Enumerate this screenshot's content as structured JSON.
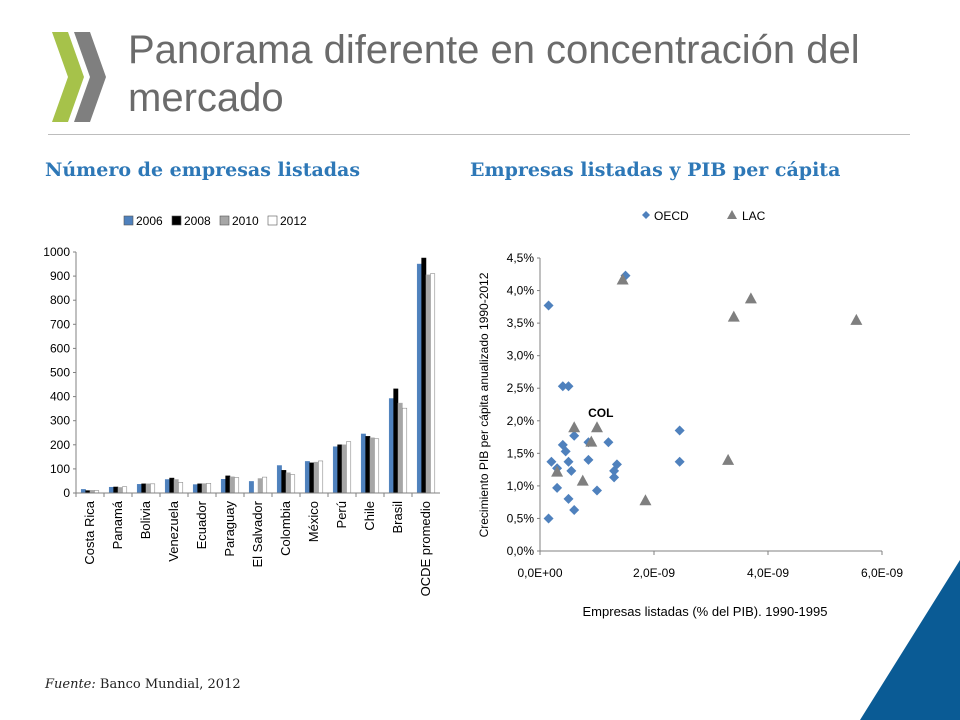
{
  "title": "Panorama diferente en concentración del mercado",
  "source": {
    "label": "Fuente:",
    "text": " Banco Mundial, 2012"
  },
  "colors": {
    "accent": "#2e78b7",
    "logo": "#a6c24a",
    "logo_dark": "#7f7f7f",
    "corner": "#0a5b95"
  },
  "chart_data": [
    {
      "type": "bar",
      "title": "Número de empresas listadas",
      "categories": [
        "Costa Rica",
        "Panamá",
        "Bolivia",
        "Venezuela",
        "Ecuador",
        "Paraguay",
        "El Salvador",
        "Colombia",
        "México",
        "Perú",
        "Chile",
        "Brasil",
        "OCDE promedio"
      ],
      "series": [
        {
          "name": "2006",
          "color": "#4f81bd",
          "values": [
            15,
            24,
            36,
            56,
            35,
            57,
            48,
            114,
            131,
            192,
            245,
            392,
            950
          ]
        },
        {
          "name": "2008",
          "color": "#000000",
          "values": [
            10,
            25,
            38,
            62,
            38,
            71,
            null,
            94,
            125,
            200,
            235,
            432,
            975
          ]
        },
        {
          "name": "2010",
          "color": "#a6a6a6",
          "values": [
            11,
            23,
            38,
            56,
            39,
            67,
            60,
            84,
            128,
            200,
            229,
            373,
            905
          ]
        },
        {
          "name": "2012",
          "color": "#ffffff",
          "values": [
            10,
            26,
            38,
            44,
            40,
            64,
            66,
            76,
            133,
            213,
            225,
            352,
            910
          ]
        }
      ],
      "ylim": [
        0,
        1000
      ],
      "yticks": [
        "0",
        "100",
        "200",
        "300",
        "400",
        "500",
        "600",
        "700",
        "800",
        "900",
        "1000"
      ],
      "legend": "top"
    },
    {
      "type": "scatter",
      "title": "Empresas listadas y PIB per cápita",
      "xlabel": "Empresas listadas (% del PIB). 1990-1995",
      "ylabel": "Crecimiento PIB per cápita anualizado  1990-2012",
      "xlim": [
        0,
        6e-09
      ],
      "ylim": [
        0,
        0.045
      ],
      "xticks": [
        {
          "v": 0,
          "label": "0,0E+00"
        },
        {
          "v": 2e-09,
          "label": "2,0E-09"
        },
        {
          "v": 4e-09,
          "label": "4,0E-09"
        },
        {
          "v": 6e-09,
          "label": "6,0E-09"
        }
      ],
      "yticks": [
        {
          "v": 0,
          "label": "0,0%"
        },
        {
          "v": 0.005,
          "label": "0,5%"
        },
        {
          "v": 0.01,
          "label": "1,0%"
        },
        {
          "v": 0.015,
          "label": "1,5%"
        },
        {
          "v": 0.02,
          "label": "2,0%"
        },
        {
          "v": 0.025,
          "label": "2,5%"
        },
        {
          "v": 0.03,
          "label": "3,0%"
        },
        {
          "v": 0.035,
          "label": "3,5%"
        },
        {
          "v": 0.04,
          "label": "4,0%"
        },
        {
          "v": 0.045,
          "label": "4,5%"
        }
      ],
      "legend": "top",
      "series": [
        {
          "name": "OECD",
          "marker": "diamond",
          "color": "#4f81bd",
          "points": [
            [
              1.5e-10,
              0.0377
            ],
            [
              1.5e-09,
              0.0423
            ],
            [
              4e-10,
              0.0253
            ],
            [
              5e-10,
              0.0253
            ],
            [
              2e-10,
              0.0137
            ],
            [
              3e-10,
              0.0127
            ],
            [
              4e-10,
              0.0163
            ],
            [
              4.5e-10,
              0.0153
            ],
            [
              6e-10,
              0.0177
            ],
            [
              8.5e-10,
              0.0167
            ],
            [
              1.2e-09,
              0.0167
            ],
            [
              5e-10,
              0.0137
            ],
            [
              5.5e-10,
              0.0123
            ],
            [
              8.5e-10,
              0.014
            ],
            [
              1.35e-09,
              0.0133
            ],
            [
              1.3e-09,
              0.0123
            ],
            [
              1.3e-09,
              0.0113
            ],
            [
              3e-10,
              0.0097
            ],
            [
              1e-09,
              0.0093
            ],
            [
              5e-10,
              0.008
            ],
            [
              6e-10,
              0.0063
            ],
            [
              1.5e-10,
              0.005
            ],
            [
              2.45e-09,
              0.0185
            ],
            [
              2.45e-09,
              0.0137
            ]
          ]
        },
        {
          "name": "LAC",
          "marker": "triangle",
          "color": "#7f7f7f",
          "points": [
            [
              1.45e-09,
              0.0417
            ],
            [
              3.7e-09,
              0.0388
            ],
            [
              3.4e-09,
              0.036
            ],
            [
              5.55e-09,
              0.0355
            ],
            [
              6e-10,
              0.019
            ],
            [
              1e-09,
              0.019
            ],
            [
              9e-10,
              0.0168
            ],
            [
              3e-10,
              0.0122
            ],
            [
              7.5e-10,
              0.0108
            ],
            [
              1.85e-09,
              0.0078
            ],
            [
              3.3e-09,
              0.014
            ]
          ]
        }
      ],
      "annotations": [
        {
          "text": "COL",
          "x": 9.5e-10,
          "y": 0.02
        }
      ]
    }
  ]
}
